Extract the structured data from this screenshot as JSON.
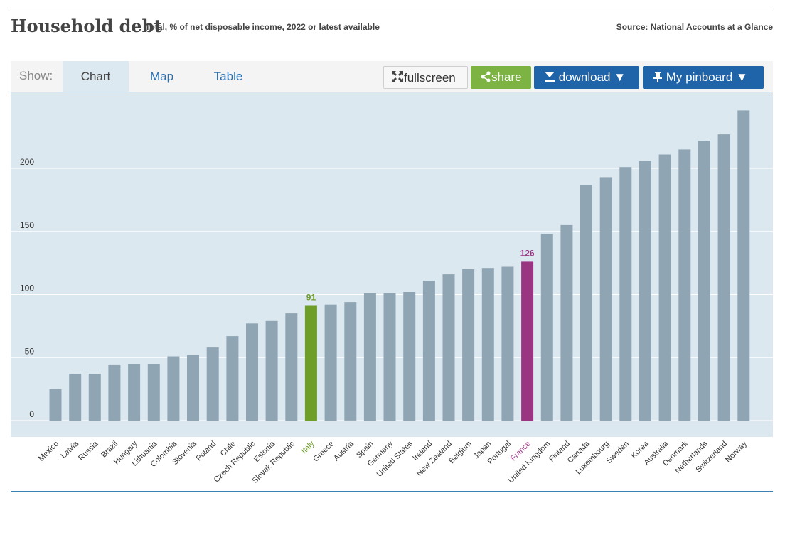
{
  "header": {
    "title": "Household debt",
    "subtitle": "Total, % of net disposable income, 2022 or latest available",
    "source": "Source: National Accounts at a Glance"
  },
  "toolbar": {
    "show_label": "Show:",
    "tabs": [
      {
        "label": "Chart",
        "active": true
      },
      {
        "label": "Map",
        "active": false
      },
      {
        "label": "Table",
        "active": false
      }
    ],
    "fullscreen_label": "fullscreen",
    "share_label": "share",
    "download_label": "download",
    "pinboard_label": "My pinboard"
  },
  "colors": {
    "bar": "#8fa5b3",
    "italy": "#6e9d28",
    "france": "#993581",
    "plot_bg": "#dce8f0",
    "gridline": "#ffffff",
    "accent": "#1f64a8"
  },
  "chart_data": {
    "type": "bar",
    "title": "Household debt",
    "subtitle": "Total, % of net disposable income, 2022 or latest available",
    "ylim": [
      0,
      250
    ],
    "yticks": [
      0,
      50,
      100,
      150,
      200
    ],
    "grid": true,
    "categories": [
      "Mexico",
      "Latvia",
      "Russia",
      "Brazil",
      "Hungary",
      "Lithuania",
      "Colombia",
      "Slovenia",
      "Poland",
      "Chile",
      "Czech Republic",
      "Estonia",
      "Slovak Republic",
      "Italy",
      "Greece",
      "Austria",
      "Spain",
      "Germany",
      "United States",
      "Ireland",
      "New Zealand",
      "Belgium",
      "Japan",
      "Portugal",
      "France",
      "United Kingdom",
      "Finland",
      "Canada",
      "Luxembourg",
      "Sweden",
      "Korea",
      "Australia",
      "Denmark",
      "Netherlands",
      "Switzerland",
      "Norway"
    ],
    "values": [
      25,
      37,
      37,
      44,
      45,
      45,
      51,
      52,
      58,
      67,
      77,
      79,
      85,
      91,
      92,
      94,
      101,
      101,
      102,
      111,
      116,
      120,
      121,
      122,
      126,
      148,
      155,
      187,
      193,
      201,
      206,
      211,
      215,
      222,
      227,
      246
    ],
    "highlighted": [
      {
        "category": "Italy",
        "label": "91",
        "color": "#6e9d28"
      },
      {
        "category": "France",
        "label": "126",
        "color": "#993581"
      }
    ]
  }
}
